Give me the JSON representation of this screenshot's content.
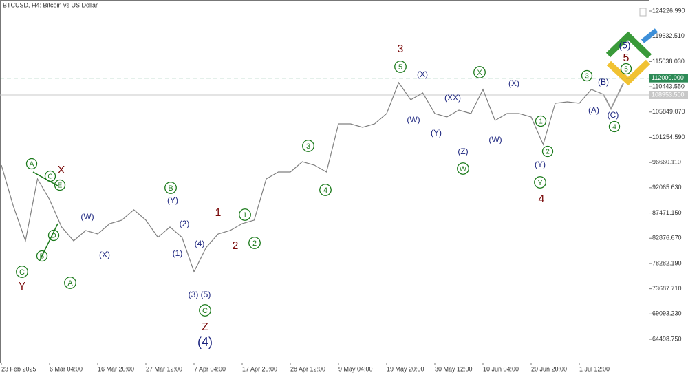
{
  "chart_data": {
    "type": "line",
    "title": "BTCUSD, H4:  Bitcoin vs US Dollar",
    "categories": [
      "23 Feb 2025",
      null,
      null,
      null,
      "6 Mar 04:00",
      null,
      null,
      null,
      "16 Mar 20:00",
      null,
      null,
      null,
      "27 Mar 12:00",
      null,
      null,
      null,
      "7 Apr 04:00",
      null,
      null,
      null,
      "17 Apr 20:00",
      null,
      null,
      null,
      "28 Apr 12:00",
      null,
      null,
      null,
      "9 May 04:00",
      null,
      null,
      null,
      "19 May 20:00",
      null,
      null,
      null,
      "30 May 12:00",
      null,
      null,
      null,
      "10 Jun 04:00",
      null,
      null,
      null,
      "20 Jun 20:00",
      null,
      null,
      null,
      "1 Jul 12:00",
      null,
      null
    ],
    "values": [
      96180,
      88670,
      82410,
      93680,
      89920,
      84920,
      82410,
      84290,
      83660,
      85540,
      86170,
      88050,
      86170,
      83040,
      84920,
      83040,
      76780,
      81160,
      83660,
      84290,
      85540,
      86170,
      93680,
      94930,
      94930,
      96810,
      96180,
      94930,
      103690,
      103690,
      103070,
      103690,
      105570,
      111210,
      108080,
      109330,
      105570,
      104950,
      106200,
      105570,
      109950,
      104320,
      105570,
      105570,
      104950,
      99940,
      107450,
      107700,
      107450,
      109950,
      109080
    ],
    "color": "#7f7f7f",
    "ylim": [
      60243,
      126230
    ],
    "yticks": [
      {
        "value": 124226.99,
        "label": "124226.990"
      },
      {
        "value": 119632.51,
        "label": "119632.510"
      },
      {
        "value": 115038.03,
        "label": "115038.030"
      },
      {
        "value": 110443.55,
        "label": "110443.550"
      },
      {
        "value": 105849.07,
        "label": "105849.070"
      },
      {
        "value": 101254.59,
        "label": "101254.590"
      },
      {
        "value": 96660.11,
        "label": "96660.110"
      },
      {
        "value": 92065.63,
        "label": "92065.630"
      },
      {
        "value": 87471.15,
        "label": "87471.150"
      },
      {
        "value": 82876.67,
        "label": "82876.670"
      },
      {
        "value": 78282.19,
        "label": "78282.190"
      },
      {
        "value": 73687.71,
        "label": "73687.710"
      },
      {
        "value": 69093.23,
        "label": "69093.230"
      },
      {
        "value": 64498.75,
        "label": "64498.750"
      }
    ],
    "grid": false,
    "price_lines": [
      {
        "value": 112000,
        "label": "112000.000",
        "color": "#2e8b57",
        "dashed": true
      },
      {
        "value": 108953.5,
        "label": "108953.500",
        "color": "#c8c8c8",
        "dashed": false
      }
    ],
    "annotations": [
      {
        "text": "3",
        "color": "#7a0a0a",
        "circled": false
      },
      {
        "text": "Y",
        "color": "#7a0a0a",
        "circled": false
      },
      {
        "text": "X",
        "color": "#7a0a0a",
        "circled": false
      },
      {
        "text": "Z",
        "color": "#7a0a0a",
        "circled": false
      },
      {
        "text": "1",
        "color": "#7a0a0a",
        "circled": false
      },
      {
        "text": "2",
        "color": "#7a0a0a",
        "circled": false
      },
      {
        "text": "4",
        "color": "#7a0a0a",
        "circled": false
      },
      {
        "text": "5",
        "color": "#7a0a0a",
        "circled": false
      },
      {
        "text": "(W)",
        "color": "#1a237e",
        "circled": false
      },
      {
        "text": "(X)",
        "color": "#1a237e",
        "circled": false
      },
      {
        "text": "(Y)",
        "color": "#1a237e",
        "circled": false
      },
      {
        "text": "(2)",
        "color": "#1a237e",
        "circled": false
      },
      {
        "text": "(1)",
        "color": "#1a237e",
        "circled": false
      },
      {
        "text": "(4)",
        "color": "#1a237e",
        "circled": false
      },
      {
        "text": "(3)",
        "color": "#1a237e",
        "circled": false
      },
      {
        "text": "(5)",
        "color": "#1a237e",
        "circled": false
      },
      {
        "text": "(4)",
        "color": "#1a237e",
        "circled": false
      },
      {
        "text": "(X)",
        "color": "#1a237e",
        "circled": false
      },
      {
        "text": "(XX)",
        "color": "#1a237e",
        "circled": false
      },
      {
        "text": "(W)",
        "color": "#1a237e",
        "circled": false
      },
      {
        "text": "(Y)",
        "color": "#1a237e",
        "circled": false
      },
      {
        "text": "(Z)",
        "color": "#1a237e",
        "circled": false
      },
      {
        "text": "(X)",
        "color": "#1a237e",
        "circled": false
      },
      {
        "text": "(W)",
        "color": "#1a237e",
        "circled": false
      },
      {
        "text": "(Y)",
        "color": "#1a237e",
        "circled": false
      },
      {
        "text": "(B)",
        "color": "#1a237e",
        "circled": false
      },
      {
        "text": "(A)",
        "color": "#1a237e",
        "circled": false
      },
      {
        "text": "(C)",
        "color": "#1a237e",
        "circled": false
      },
      {
        "text": "(5)",
        "color": "#1a237e",
        "circled": false
      },
      {
        "text": "A",
        "color": "#1b7a1b",
        "circled": true
      },
      {
        "text": "C",
        "color": "#1b7a1b",
        "circled": true
      },
      {
        "text": "E",
        "color": "#1b7a1b",
        "circled": true
      },
      {
        "text": "D",
        "color": "#1b7a1b",
        "circled": true
      },
      {
        "text": "B",
        "color": "#1b7a1b",
        "circled": true
      },
      {
        "text": "C",
        "color": "#1b7a1b",
        "circled": true
      },
      {
        "text": "A",
        "color": "#1b7a1b",
        "circled": true
      },
      {
        "text": "B",
        "color": "#1b7a1b",
        "circled": true
      },
      {
        "text": "C",
        "color": "#1b7a1b",
        "circled": true
      },
      {
        "text": "1",
        "color": "#1b7a1b",
        "circled": true
      },
      {
        "text": "2",
        "color": "#1b7a1b",
        "circled": true
      },
      {
        "text": "3",
        "color": "#1b7a1b",
        "circled": true
      },
      {
        "text": "4",
        "color": "#1b7a1b",
        "circled": true
      },
      {
        "text": "5",
        "color": "#1b7a1b",
        "circled": true
      },
      {
        "text": "X",
        "color": "#1b7a1b",
        "circled": true
      },
      {
        "text": "W",
        "color": "#1b7a1b",
        "circled": true
      },
      {
        "text": "3",
        "color": "#1b7a1b",
        "circled": true
      },
      {
        "text": "1",
        "color": "#1b7a1b",
        "circled": true
      },
      {
        "text": "2",
        "color": "#1b7a1b",
        "circled": true
      },
      {
        "text": "Y",
        "color": "#1b7a1b",
        "circled": true
      },
      {
        "text": "4",
        "color": "#1b7a1b",
        "circled": true
      },
      {
        "text": "5",
        "color": "#1b7a1b",
        "circled": true
      }
    ]
  }
}
